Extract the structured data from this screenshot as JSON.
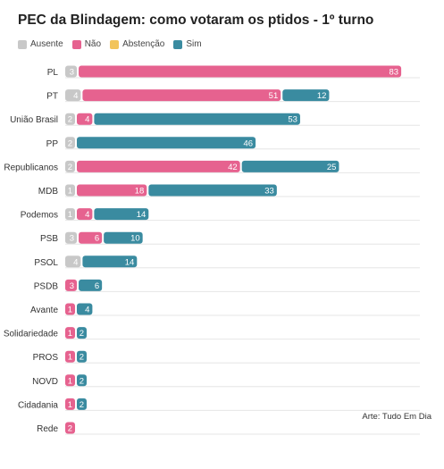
{
  "title": "PEC da Blindagem: como votaram os ptidos - 1º turno",
  "credit": "Arte: Tudo Em Dia",
  "legend": [
    {
      "label": "Ausente",
      "color": "#c8c8c8"
    },
    {
      "label": "Não",
      "color": "#e6628f"
    },
    {
      "label": "Abstenção",
      "color": "#f2c45a"
    },
    {
      "label": "Sim",
      "color": "#3a8ba0"
    }
  ],
  "chart_data": {
    "type": "bar",
    "orientation": "horizontal",
    "stacked": true,
    "title": "PEC da Blindagem: como votaram os ptidos - 1º turno",
    "categories": [
      "PL",
      "PT",
      "União Brasil",
      "PP",
      "Republicanos",
      "MDB",
      "Podemos",
      "PSB",
      "PSOL",
      "PSDB",
      "Avante",
      "Solidariedade",
      "PROS",
      "NOVO",
      "Cidadania",
      "Rede"
    ],
    "category_labels_shown": [
      "PL",
      "PT",
      "União Brasil",
      "PP",
      "Republicanos",
      "MDB",
      "Podemos",
      "PSB",
      "PSOL",
      "PSDB",
      "Avante",
      "Solidariedade",
      "PROS",
      "NOVD",
      "Cidadania",
      "Rede"
    ],
    "series": [
      {
        "name": "Ausente",
        "color": "#c8c8c8",
        "values": [
          3,
          4,
          2,
          2,
          2,
          1,
          1,
          3,
          4,
          0,
          0,
          0,
          0,
          0,
          0,
          0
        ]
      },
      {
        "name": "Não",
        "color": "#e6628f",
        "values": [
          83,
          51,
          4,
          0,
          42,
          18,
          4,
          6,
          0,
          3,
          1,
          1,
          1,
          1,
          1,
          2
        ]
      },
      {
        "name": "Abstenção",
        "color": "#f2c45a",
        "values": [
          0,
          0,
          0,
          0,
          0,
          0,
          0,
          0,
          0,
          0,
          0,
          0,
          0,
          0,
          0,
          0
        ]
      },
      {
        "name": "Sim",
        "color": "#3a8ba0",
        "values": [
          0,
          12,
          53,
          46,
          25,
          33,
          14,
          10,
          14,
          6,
          4,
          2,
          2,
          2,
          2,
          0
        ]
      }
    ],
    "grid": true,
    "legend_position": "top-left",
    "data_labels": true
  }
}
